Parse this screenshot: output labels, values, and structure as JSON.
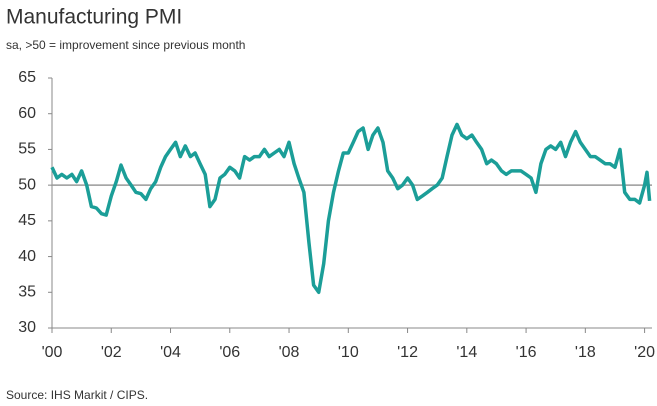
{
  "chart_data": {
    "type": "line",
    "title": "Manufacturing PMI",
    "subtitle": "sa, >50 = improvement since previous month",
    "source": "Source: IHS Markit / CIPS.",
    "xlim": [
      2000,
      2020.25
    ],
    "xticks": [
      {
        "value": 2000,
        "label": "'00"
      },
      {
        "value": 2002,
        "label": "'02"
      },
      {
        "value": 2004,
        "label": "'04"
      },
      {
        "value": 2006,
        "label": "'06"
      },
      {
        "value": 2008,
        "label": "'08"
      },
      {
        "value": 2010,
        "label": "'10"
      },
      {
        "value": 2012,
        "label": "'12"
      },
      {
        "value": 2014,
        "label": "'14"
      },
      {
        "value": 2016,
        "label": "'16"
      },
      {
        "value": 2018,
        "label": "'18"
      },
      {
        "value": 2020,
        "label": "'20"
      }
    ],
    "ylim": [
      30,
      65
    ],
    "yticks": [
      30,
      35,
      40,
      45,
      50,
      55,
      60,
      65
    ],
    "hline": 50,
    "series": [
      {
        "name": "Manufacturing PMI",
        "color": "#1b9e98",
        "x": [
          2000,
          2000.17,
          2000.33,
          2000.5,
          2000.67,
          2000.83,
          2001,
          2001.17,
          2001.33,
          2001.5,
          2001.67,
          2001.83,
          2002,
          2002.17,
          2002.33,
          2002.5,
          2002.67,
          2002.83,
          2003,
          2003.17,
          2003.33,
          2003.5,
          2003.67,
          2003.83,
          2004,
          2004.17,
          2004.33,
          2004.5,
          2004.67,
          2004.83,
          2005,
          2005.17,
          2005.33,
          2005.5,
          2005.67,
          2005.83,
          2006,
          2006.17,
          2006.33,
          2006.5,
          2006.67,
          2006.83,
          2007,
          2007.17,
          2007.33,
          2007.5,
          2007.67,
          2007.83,
          2008,
          2008.17,
          2008.33,
          2008.5,
          2008.67,
          2008.83,
          2009,
          2009.17,
          2009.33,
          2009.5,
          2009.67,
          2009.83,
          2010,
          2010.17,
          2010.33,
          2010.5,
          2010.67,
          2010.83,
          2011,
          2011.17,
          2011.33,
          2011.5,
          2011.67,
          2011.83,
          2012,
          2012.17,
          2012.33,
          2012.5,
          2012.67,
          2012.83,
          2013,
          2013.17,
          2013.33,
          2013.5,
          2013.67,
          2013.83,
          2014,
          2014.17,
          2014.33,
          2014.5,
          2014.67,
          2014.83,
          2015,
          2015.17,
          2015.33,
          2015.5,
          2015.67,
          2015.83,
          2016,
          2016.17,
          2016.33,
          2016.5,
          2016.67,
          2016.83,
          2017,
          2017.17,
          2017.33,
          2017.5,
          2017.67,
          2017.83,
          2018,
          2018.17,
          2018.33,
          2018.5,
          2018.67,
          2018.83,
          2019,
          2019.17,
          2019.33,
          2019.5,
          2019.67,
          2019.83,
          2020,
          2020.08,
          2020.17
        ],
        "values": [
          52.5,
          51,
          51.5,
          51,
          51.5,
          50.5,
          52,
          50,
          47,
          46.8,
          46,
          45.8,
          48.5,
          50.5,
          52.8,
          51,
          50,
          49,
          48.8,
          48,
          49.5,
          50.5,
          52.5,
          54,
          55,
          56,
          54,
          55.5,
          54,
          54.5,
          53,
          51.5,
          47,
          48,
          51,
          51.5,
          52.5,
          52,
          51,
          54,
          53.5,
          54,
          54,
          55,
          54,
          54.5,
          55,
          54,
          56,
          53,
          51,
          49,
          42,
          36,
          35,
          39,
          45,
          49,
          52,
          54.5,
          54.5,
          56,
          57.5,
          58,
          55,
          57,
          58,
          56,
          52,
          51,
          49.5,
          50,
          51,
          50,
          48,
          48.5,
          49,
          49.5,
          50,
          51,
          54,
          57,
          58.5,
          57,
          56.5,
          57,
          56,
          55,
          53,
          53.5,
          53,
          52,
          51.5,
          52,
          52,
          52,
          51.5,
          51,
          49,
          53,
          55,
          55.5,
          55,
          56,
          54,
          56,
          57.5,
          56,
          55,
          54,
          54,
          53.5,
          53,
          53,
          52.5,
          55,
          49,
          48,
          48,
          47.5,
          50,
          51.8,
          47.8
        ]
      }
    ]
  }
}
